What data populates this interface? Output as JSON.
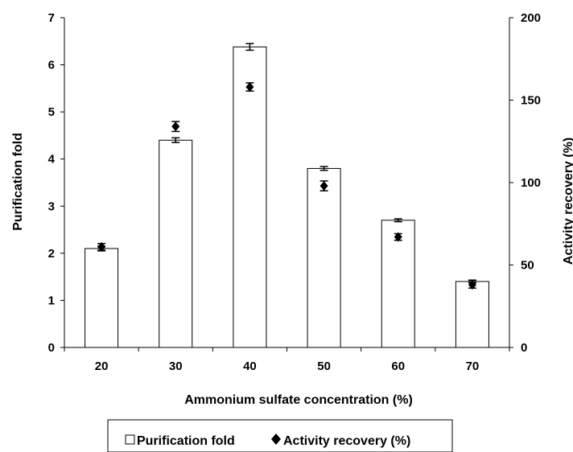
{
  "chart_data": {
    "type": "bar",
    "categories": [
      "20",
      "30",
      "40",
      "50",
      "60",
      "70"
    ],
    "series": [
      {
        "name": "Purification fold",
        "kind": "bar",
        "axis": "left",
        "values": [
          2.1,
          4.4,
          6.38,
          3.8,
          2.7,
          1.4
        ],
        "errors": [
          0.05,
          0.05,
          0.07,
          0.04,
          0.03,
          0.03
        ],
        "color": "#ffffff",
        "stroke": "#000000"
      },
      {
        "name": "Activity recovery (%)",
        "kind": "scatter",
        "marker": "diamond",
        "axis": "right",
        "values": [
          61,
          134,
          158,
          98,
          67,
          38
        ],
        "errors": [
          2,
          3,
          2.5,
          3,
          2,
          2
        ],
        "color": "#000000"
      }
    ],
    "xlabel": "Ammonium sulfate concentration (%)",
    "ylabel": "Purification fold",
    "y2label": "Activity recovery (%)",
    "ylim": [
      0,
      7
    ],
    "y2lim": [
      0,
      200
    ],
    "yticks": [
      "0",
      "1",
      "2",
      "3",
      "4",
      "5",
      "6",
      "7"
    ],
    "y2ticks": [
      "0",
      "50",
      "100",
      "150",
      "200"
    ],
    "grid": false,
    "legend_position": "bottom"
  }
}
